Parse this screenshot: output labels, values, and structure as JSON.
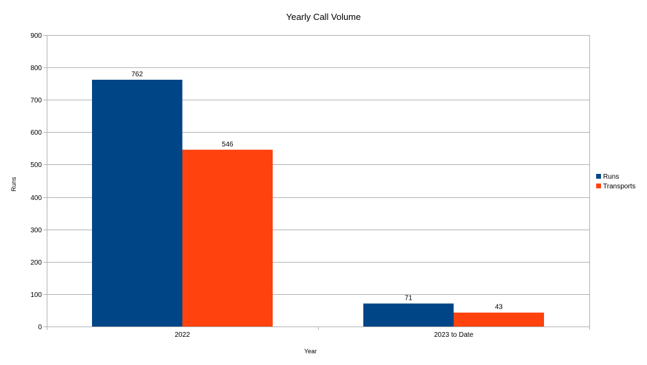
{
  "chart_data": {
    "type": "bar",
    "title": "Yearly Call Volume",
    "xlabel": "Year",
    "ylabel": "Runs",
    "categories": [
      "2022",
      "2023 to Date"
    ],
    "series": [
      {
        "name": "Runs",
        "values": [
          762,
          71
        ],
        "color": "#004586"
      },
      {
        "name": "Transports",
        "values": [
          546,
          43
        ],
        "color": "#ff420e"
      }
    ],
    "ylim": [
      0,
      900
    ],
    "yticks": [
      0,
      100,
      200,
      300,
      400,
      500,
      600,
      700,
      800,
      900
    ],
    "grid": true,
    "legend": "right"
  }
}
